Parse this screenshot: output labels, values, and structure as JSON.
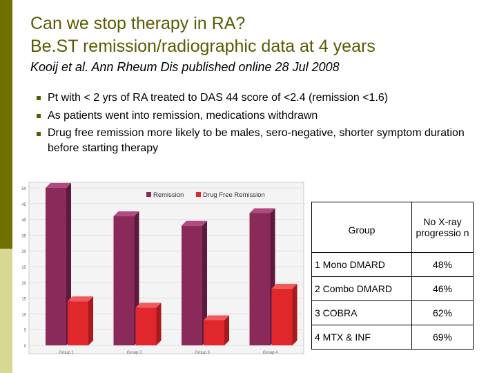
{
  "title": {
    "line1": "Can we stop therapy in RA?",
    "line2": "Be.ST remission/radiographic data at 4 years"
  },
  "subtitle": "Kooij et al. Ann Rheum Dis published online 28 Jul 2008",
  "bullets": [
    "Pt with < 2 yrs of RA treated to DAS 44 score of <2.4 (remission <1.6)",
    "As patients went into remission, medications withdrawn",
    "Drug free remission more likely to be males, sero-negative, shorter symptom duration before starting therapy"
  ],
  "table": {
    "header": {
      "group": "Group",
      "value": "No X-ray progressio n"
    },
    "rows": [
      {
        "group": "1 Mono DMARD",
        "value": "48%"
      },
      {
        "group": "2 Combo DMARD",
        "value": "46%"
      },
      {
        "group": "3 COBRA",
        "value": "62%"
      },
      {
        "group": "4 MTX & INF",
        "value": "69%"
      }
    ]
  },
  "colors": {
    "accent": "#5a5a00",
    "remission": "#8a2a5a",
    "drug_free": "#e0282c"
  },
  "chart_data": {
    "type": "bar",
    "categories": [
      "Group 1",
      "Group 2",
      "Group 3",
      "Group 4"
    ],
    "series": [
      {
        "name": "Remission",
        "values": [
          50,
          41,
          38,
          42
        ]
      },
      {
        "name": "Drug Free Remission",
        "values": [
          14,
          12,
          8,
          18
        ]
      }
    ],
    "yticks": [
      "50",
      "45",
      "40",
      "35",
      "30",
      "25",
      "20",
      "15",
      "10",
      "5",
      "0"
    ],
    "ylim": [
      0,
      50
    ],
    "legend": "top-right"
  }
}
